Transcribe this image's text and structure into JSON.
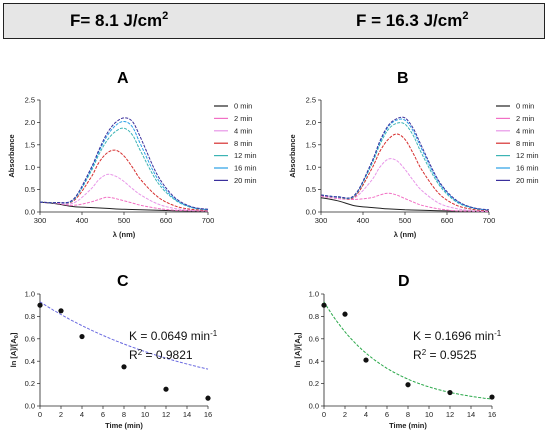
{
  "header": {
    "left_label": "F= 8.1 J/cm",
    "left_sup": "2",
    "right_label": "F = 16.3  J/cm",
    "right_sup": "2"
  },
  "chart_data": [
    {
      "panel": "A",
      "type": "line",
      "title": "A",
      "xlabel": "λ (nm)",
      "ylabel": "Absorbance",
      "xlim": [
        300,
        700
      ],
      "ylim": [
        0,
        2.5
      ],
      "xticks": [
        "300",
        "400",
        "500",
        "600",
        "700"
      ],
      "yticks": [
        "0.0",
        "0.5",
        "1.0",
        "1.5",
        "2.0",
        "2.5"
      ],
      "legend_position": "right",
      "series": [
        {
          "name": "0 min",
          "color": "#222222",
          "x": [
            300,
            340,
            380,
            420,
            460,
            500,
            540,
            580,
            620,
            660,
            700
          ],
          "y": [
            0.22,
            0.18,
            0.12,
            0.1,
            0.08,
            0.06,
            0.05,
            0.04,
            0.03,
            0.02,
            0.02
          ]
        },
        {
          "name": "2 min",
          "color": "#f26fc4",
          "x": [
            300,
            340,
            380,
            420,
            440,
            460,
            480,
            500,
            520,
            540,
            580,
            620,
            660,
            700
          ],
          "y": [
            0.22,
            0.19,
            0.15,
            0.22,
            0.28,
            0.33,
            0.3,
            0.25,
            0.2,
            0.15,
            0.08,
            0.04,
            0.03,
            0.02
          ]
        },
        {
          "name": "4 min",
          "color": "#e896e8",
          "x": [
            300,
            340,
            380,
            420,
            440,
            460,
            480,
            500,
            520,
            540,
            580,
            620,
            660,
            700
          ],
          "y": [
            0.22,
            0.2,
            0.2,
            0.5,
            0.72,
            0.84,
            0.8,
            0.68,
            0.52,
            0.38,
            0.18,
            0.08,
            0.04,
            0.03
          ]
        },
        {
          "name": "8 min",
          "color": "#d62f2f",
          "x": [
            300,
            340,
            380,
            420,
            440,
            460,
            480,
            500,
            520,
            540,
            580,
            620,
            660,
            700
          ],
          "y": [
            0.22,
            0.21,
            0.25,
            0.75,
            1.1,
            1.32,
            1.38,
            1.25,
            1.0,
            0.72,
            0.34,
            0.14,
            0.06,
            0.04
          ]
        },
        {
          "name": "12 min",
          "color": "#3cb4b4",
          "x": [
            300,
            340,
            380,
            420,
            440,
            460,
            480,
            500,
            520,
            540,
            580,
            620,
            660,
            700
          ],
          "y": [
            0.22,
            0.21,
            0.27,
            0.88,
            1.28,
            1.6,
            1.8,
            1.87,
            1.72,
            1.35,
            0.66,
            0.28,
            0.1,
            0.05
          ]
        },
        {
          "name": "16 min",
          "color": "#2aa0e6",
          "x": [
            300,
            340,
            380,
            420,
            440,
            460,
            480,
            500,
            520,
            540,
            580,
            620,
            660,
            700
          ],
          "y": [
            0.22,
            0.21,
            0.28,
            0.92,
            1.34,
            1.7,
            1.93,
            2.02,
            1.9,
            1.5,
            0.74,
            0.3,
            0.11,
            0.05
          ]
        },
        {
          "name": "20 min",
          "color": "#3a2f9c",
          "x": [
            300,
            340,
            380,
            420,
            440,
            460,
            480,
            500,
            520,
            540,
            580,
            620,
            660,
            700
          ],
          "y": [
            0.22,
            0.21,
            0.29,
            0.95,
            1.38,
            1.76,
            2.0,
            2.1,
            2.02,
            1.65,
            0.82,
            0.33,
            0.12,
            0.06
          ]
        }
      ]
    },
    {
      "panel": "B",
      "type": "line",
      "title": "B",
      "xlabel": "λ (nm)",
      "ylabel": "Absorbance",
      "xlim": [
        300,
        700
      ],
      "ylim": [
        0,
        2.5
      ],
      "xticks": [
        "300",
        "400",
        "500",
        "600",
        "700"
      ],
      "yticks": [
        "0.0",
        "0.5",
        "1.0",
        "1.5",
        "2.0",
        "2.5"
      ],
      "legend_position": "right",
      "series": [
        {
          "name": "0 min",
          "color": "#222222",
          "x": [
            300,
            340,
            380,
            420,
            460,
            500,
            540,
            580,
            620,
            660,
            700
          ],
          "y": [
            0.32,
            0.25,
            0.14,
            0.1,
            0.07,
            0.05,
            0.04,
            0.03,
            0.02,
            0.02,
            0.01
          ]
        },
        {
          "name": "2 min",
          "color": "#f26fc4",
          "x": [
            300,
            340,
            380,
            420,
            440,
            460,
            480,
            500,
            520,
            540,
            580,
            620,
            660,
            700
          ],
          "y": [
            0.35,
            0.3,
            0.28,
            0.32,
            0.38,
            0.42,
            0.38,
            0.3,
            0.22,
            0.15,
            0.07,
            0.03,
            0.02,
            0.01
          ]
        },
        {
          "name": "4 min",
          "color": "#e896e8",
          "x": [
            300,
            340,
            380,
            420,
            440,
            460,
            480,
            500,
            520,
            540,
            580,
            620,
            660,
            700
          ],
          "y": [
            0.36,
            0.32,
            0.32,
            0.7,
            1.0,
            1.18,
            1.15,
            0.95,
            0.7,
            0.48,
            0.2,
            0.08,
            0.03,
            0.02
          ]
        },
        {
          "name": "8 min",
          "color": "#d62f2f",
          "x": [
            300,
            340,
            380,
            420,
            440,
            460,
            480,
            500,
            520,
            540,
            580,
            620,
            660,
            700
          ],
          "y": [
            0.37,
            0.33,
            0.34,
            0.95,
            1.35,
            1.62,
            1.74,
            1.62,
            1.3,
            0.94,
            0.42,
            0.16,
            0.06,
            0.03
          ]
        },
        {
          "name": "12 min",
          "color": "#3cb4b4",
          "x": [
            300,
            340,
            380,
            420,
            440,
            460,
            480,
            500,
            520,
            540,
            580,
            620,
            660,
            700
          ],
          "y": [
            0.38,
            0.33,
            0.36,
            1.05,
            1.5,
            1.84,
            1.98,
            1.96,
            1.7,
            1.3,
            0.62,
            0.24,
            0.09,
            0.04
          ]
        },
        {
          "name": "16 min",
          "color": "#2aa0e6",
          "x": [
            300,
            340,
            380,
            420,
            440,
            460,
            480,
            500,
            520,
            540,
            580,
            620,
            660,
            700
          ],
          "y": [
            0.38,
            0.34,
            0.37,
            1.08,
            1.55,
            1.9,
            2.05,
            2.05,
            1.8,
            1.4,
            0.67,
            0.26,
            0.1,
            0.04
          ]
        },
        {
          "name": "20 min",
          "color": "#3a2f9c",
          "x": [
            300,
            340,
            380,
            420,
            440,
            460,
            480,
            500,
            520,
            540,
            580,
            620,
            660,
            700
          ],
          "y": [
            0.38,
            0.34,
            0.38,
            1.1,
            1.58,
            1.93,
            2.08,
            2.1,
            1.86,
            1.46,
            0.7,
            0.28,
            0.1,
            0.05
          ]
        }
      ]
    },
    {
      "panel": "C",
      "type": "scatter",
      "title": "C",
      "xlabel": "Time (min)",
      "ylabel": "ln [A]/[A0]",
      "xlim": [
        0,
        16
      ],
      "ylim": [
        0,
        1.0
      ],
      "xticks": [
        "0",
        "2",
        "4",
        "6",
        "8",
        "10",
        "12",
        "14",
        "16"
      ],
      "yticks": [
        "0.0",
        "0.2",
        "0.4",
        "0.6",
        "0.8",
        "1.0"
      ],
      "points": {
        "x": [
          0,
          2,
          4,
          8,
          12,
          16
        ],
        "y": [
          0.9,
          0.85,
          0.62,
          0.35,
          0.15,
          0.07
        ]
      },
      "fit": {
        "color": "#6a6ae0",
        "a": 0.93,
        "k": 0.0649
      },
      "annotation_k": "K = 0.0649 min",
      "annotation_k_sup": "-1",
      "annotation_r": "R",
      "annotation_r_sup": "2",
      "annotation_r_val": " = 0.9821"
    },
    {
      "panel": "D",
      "type": "scatter",
      "title": "D",
      "xlabel": "Time (min)",
      "ylabel": "ln [A]/[A0]",
      "xlim": [
        0,
        16
      ],
      "ylim": [
        0,
        1.0
      ],
      "xticks": [
        "0",
        "2",
        "4",
        "6",
        "8",
        "10",
        "12",
        "14",
        "16"
      ],
      "yticks": [
        "0.0",
        "0.2",
        "0.4",
        "0.6",
        "0.8",
        "1.0"
      ],
      "points": {
        "x": [
          0,
          2,
          4,
          8,
          12,
          16
        ],
        "y": [
          0.9,
          0.82,
          0.41,
          0.19,
          0.12,
          0.08
        ]
      },
      "fit": {
        "color": "#2aa84a",
        "a": 0.93,
        "k": 0.1696
      },
      "annotation_k": "K = 0.1696 min",
      "annotation_k_sup": "-1",
      "annotation_r": "R",
      "annotation_r_sup": "2",
      "annotation_r_val": " = 0.9525"
    }
  ]
}
